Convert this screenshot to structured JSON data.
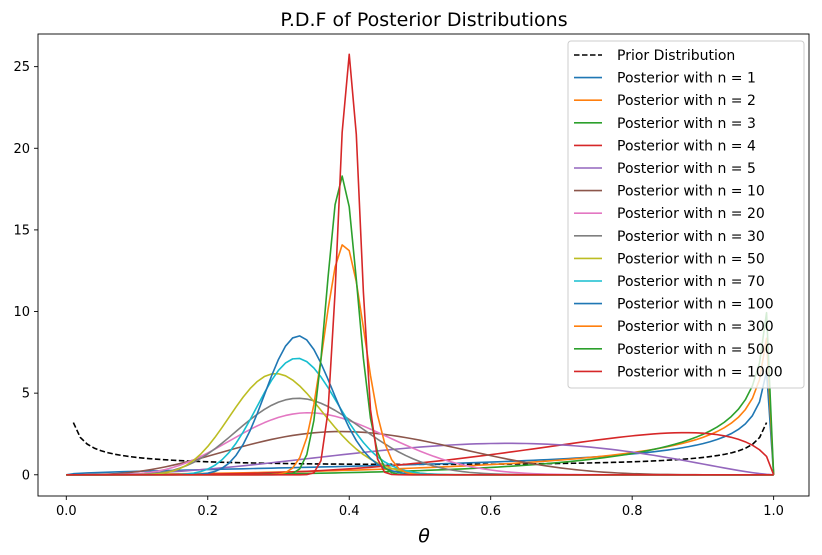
{
  "chart_data": {
    "type": "line",
    "title": "P.D.F of Posterior Distributions",
    "xlabel": "θ",
    "ylabel": "",
    "xlim": [
      -0.04,
      1.05
    ],
    "ylim": [
      -1.3,
      27
    ],
    "xticks": [
      0.0,
      0.2,
      0.4,
      0.6,
      0.8,
      1.0
    ],
    "xtick_labels": [
      "0.0",
      "0.2",
      "0.4",
      "0.6",
      "0.8",
      "1.0"
    ],
    "yticks": [
      0,
      5,
      10,
      15,
      20,
      25
    ],
    "ytick_labels": [
      "0",
      "5",
      "10",
      "15",
      "20",
      "25"
    ],
    "grid": false,
    "legend_position": "upper right",
    "series": [
      {
        "name": "Prior Distribution",
        "color": "#000000",
        "dashed": true,
        "dist": "beta",
        "a": 0.5,
        "b": 0.5,
        "xmin": 0.01,
        "xmax": 0.99
      },
      {
        "name": "Posterior with n = 1",
        "color": "#1f77b4",
        "dist": "beta",
        "a": 1.5,
        "b": 0.5
      },
      {
        "name": "Posterior with n = 2",
        "color": "#ff7f0e",
        "dist": "beta",
        "a": 2.5,
        "b": 0.5
      },
      {
        "name": "Posterior with n = 3",
        "color": "#2ca02c",
        "dist": "beta",
        "a": 3.5,
        "b": 0.5
      },
      {
        "name": "Posterior with n = 4",
        "color": "#d62728",
        "dist": "beta",
        "a": 4.5,
        "b": 1.5
      },
      {
        "name": "Posterior with n = 5",
        "color": "#9467bd",
        "dist": "beta",
        "a": 3.5,
        "b": 2.5
      },
      {
        "name": "Posterior with n = 10",
        "color": "#8c564b",
        "dist": "beta",
        "a": 4.5,
        "b": 6.5
      },
      {
        "name": "Posterior with n = 20",
        "color": "#e377c2",
        "dist": "beta",
        "a": 7.5,
        "b": 13.5
      },
      {
        "name": "Posterior with n = 30",
        "color": "#7f7f7f",
        "dist": "beta",
        "a": 10.5,
        "b": 20.5
      },
      {
        "name": "Posterior with n = 50",
        "color": "#bcbd22",
        "dist": "beta",
        "a": 15.5,
        "b": 35.5
      },
      {
        "name": "Posterior with n = 70",
        "color": "#17becf",
        "dist": "beta",
        "a": 23.5,
        "b": 47.5
      },
      {
        "name": "Posterior with n = 100",
        "color": "#1f77b4",
        "dist": "beta",
        "a": 33.5,
        "b": 67.5
      },
      {
        "name": "Posterior with n = 300",
        "color": "#ff7f0e",
        "dist": "beta",
        "a": 118.5,
        "b": 182.5
      },
      {
        "name": "Posterior with n = 500",
        "color": "#2ca02c",
        "dist": "beta",
        "a": 195.5,
        "b": 305.5
      },
      {
        "name": "Posterior with n = 1000",
        "color": "#d62728",
        "dist": "beta",
        "a": 400.5,
        "b": 600.5
      }
    ]
  }
}
